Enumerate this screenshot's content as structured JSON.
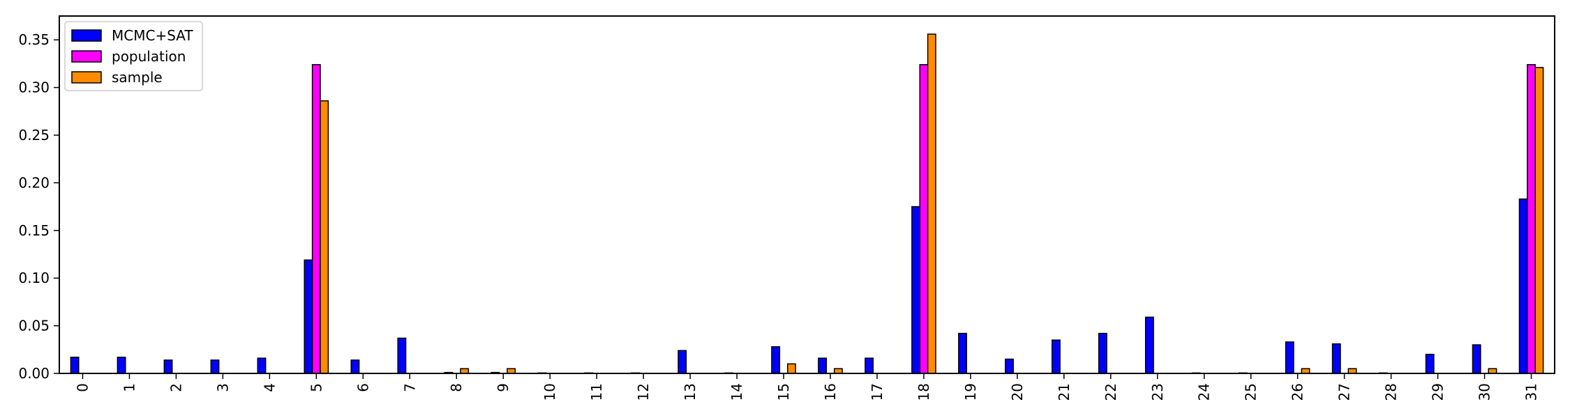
{
  "chart_data": {
    "type": "bar",
    "title": "",
    "xlabel": "",
    "ylabel": "",
    "ylim": [
      0,
      0.375
    ],
    "yticks": [
      "0.00",
      "0.05",
      "0.10",
      "0.15",
      "0.20",
      "0.25",
      "0.30",
      "0.35"
    ],
    "categories": [
      "0",
      "1",
      "2",
      "3",
      "4",
      "5",
      "6",
      "7",
      "8",
      "9",
      "10",
      "11",
      "12",
      "13",
      "14",
      "15",
      "16",
      "17",
      "18",
      "19",
      "20",
      "21",
      "22",
      "23",
      "24",
      "25",
      "26",
      "27",
      "28",
      "29",
      "30",
      "31"
    ],
    "legend_position": "top-left",
    "grid": false,
    "series": [
      {
        "name": "MCMC+SAT",
        "color": "#0000ff",
        "values": [
          0.017,
          0.017,
          0.014,
          0.014,
          0.016,
          0.119,
          0.014,
          0.037,
          0.001,
          0.001,
          0.0005,
          0.0005,
          0.0005,
          0.024,
          0.0005,
          0.028,
          0.016,
          0.016,
          0.175,
          0.042,
          0.015,
          0.035,
          0.042,
          0.059,
          0.0005,
          0.0005,
          0.033,
          0.031,
          0.0005,
          0.02,
          0.03,
          0.183
        ]
      },
      {
        "name": "population",
        "color": "#ff00ff",
        "values": [
          0,
          0,
          0,
          0,
          0,
          0.324,
          0,
          0,
          0,
          0,
          0,
          0,
          0,
          0,
          0,
          0,
          0,
          0,
          0.324,
          0,
          0,
          0,
          0,
          0,
          0,
          0,
          0,
          0,
          0,
          0,
          0,
          0.324
        ]
      },
      {
        "name": "sample",
        "color": "#ff8c00",
        "values": [
          0,
          0,
          0,
          0,
          0,
          0.286,
          0,
          0,
          0.005,
          0.005,
          0,
          0,
          0,
          0,
          0,
          0.01,
          0.005,
          0,
          0.356,
          0,
          0,
          0,
          0,
          0,
          0,
          0,
          0.005,
          0.005,
          0,
          0,
          0.005,
          0.321
        ]
      }
    ]
  }
}
